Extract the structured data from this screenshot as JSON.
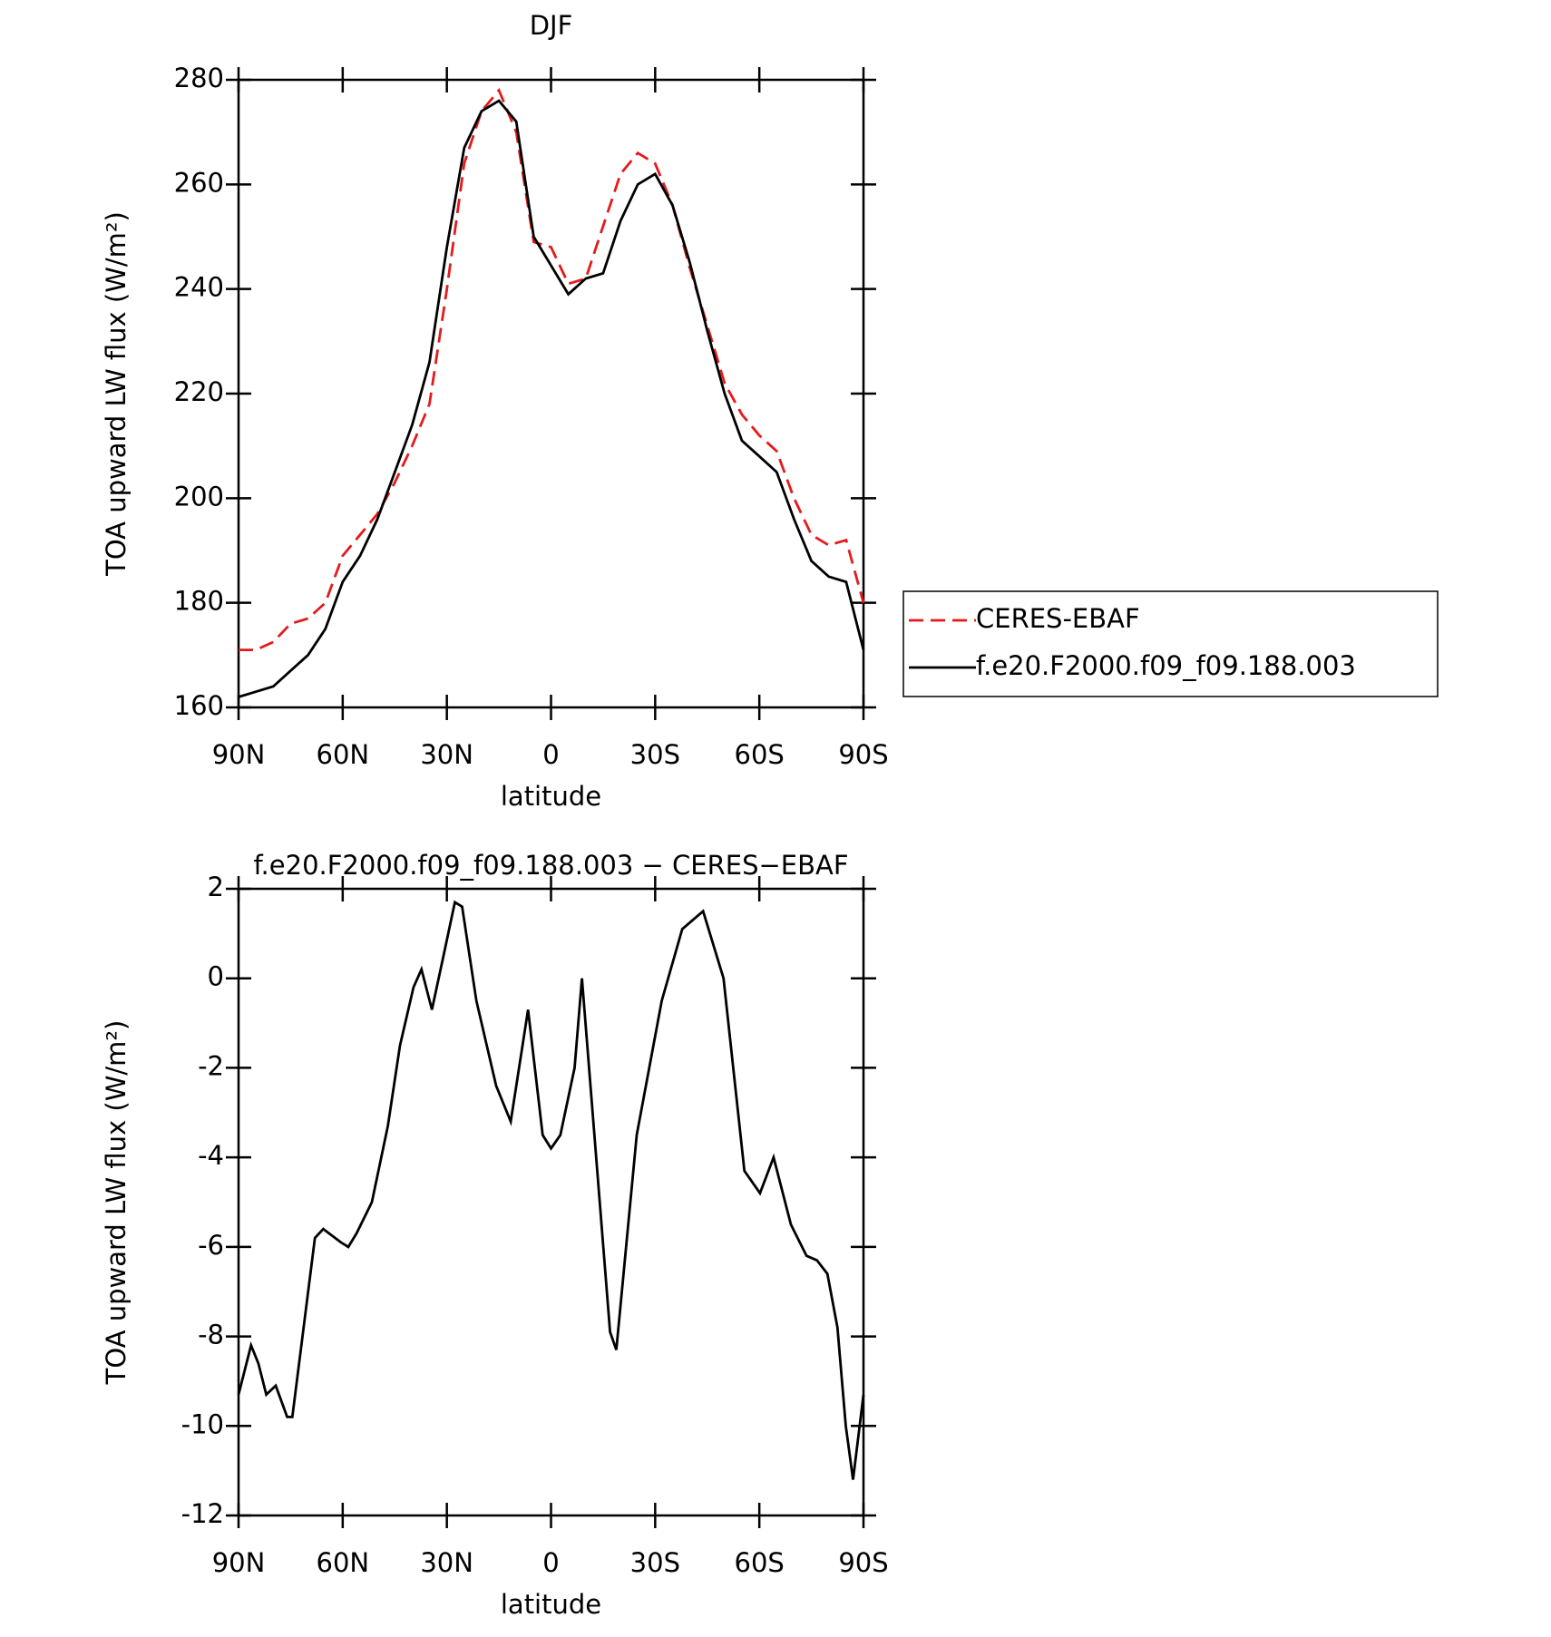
{
  "chart_data": [
    {
      "type": "line",
      "title": "DJF",
      "x_label": "latitude",
      "y_label": "TOA upward LW flux (W/m²)",
      "x": [
        90,
        85,
        80,
        75,
        70,
        65,
        60,
        55,
        50,
        45,
        40,
        35,
        30,
        25,
        20,
        15,
        10,
        5,
        0,
        -5,
        -10,
        -15,
        -20,
        -25,
        -30,
        -35,
        -40,
        -45,
        -50,
        -55,
        -60,
        -65,
        -70,
        -75,
        -80,
        -85,
        -90
      ],
      "xlim": [
        90,
        -90
      ],
      "xticks": [
        {
          "value": 90,
          "label": "90N"
        },
        {
          "value": 60,
          "label": "60N"
        },
        {
          "value": 30,
          "label": "30N"
        },
        0,
        {
          "value": -30,
          "label": "30S"
        },
        {
          "value": -60,
          "label": "60S"
        },
        {
          "value": -90,
          "label": "90S"
        }
      ],
      "ylim": [
        160,
        280
      ],
      "yticks": [
        160,
        180,
        200,
        220,
        240,
        260,
        280
      ],
      "legend": "outside-right",
      "series": [
        {
          "name": "CERES-EBAF",
          "color": "#e41a1c",
          "dashed": true,
          "values": [
            171,
            171,
            172.5,
            176,
            177,
            180,
            189,
            193,
            197,
            203,
            210,
            218,
            240,
            264,
            274,
            278,
            270,
            249,
            248,
            241,
            242,
            252,
            262,
            266,
            264,
            256,
            244,
            233,
            222,
            216,
            212,
            209,
            200,
            193,
            191,
            192,
            180
          ]
        },
        {
          "name": "f.e20.F2000.f09_f09.188.003",
          "color": "#000000",
          "dashed": false,
          "values": [
            162,
            163,
            164,
            167,
            170,
            175,
            184,
            189,
            196,
            205,
            214,
            226,
            248,
            267,
            274,
            276,
            272,
            250,
            244.5,
            239,
            242,
            243,
            253,
            260,
            262,
            256,
            245,
            232,
            220,
            211,
            208,
            205,
            196,
            188,
            185,
            184,
            171
          ]
        }
      ]
    },
    {
      "type": "line",
      "title": "f.e20.F2000.f09_f09.188.003 − CERES−EBAF",
      "x_label": "latitude",
      "y_label": "TOA upward LW flux (W/m²)",
      "x": [
        90,
        86.4,
        84.3,
        82,
        79.3,
        76,
        74.5,
        68,
        65.6,
        60.5,
        58.4,
        56,
        51.6,
        47,
        43.5,
        39.6,
        37.3,
        34.3,
        30.7,
        27.7,
        25.6,
        21.5,
        15.8,
        11.6,
        6.6,
        2.4,
        0,
        -2.7,
        -6.8,
        -8.9,
        -17,
        -18.8,
        -24.7,
        -31.9,
        -37.8,
        -43.8,
        -49.7,
        -55.7,
        -60.2,
        -64.1,
        -69.1,
        -73.6,
        -76.6,
        -79.6,
        -82.5,
        -84.9,
        -87,
        -90
      ],
      "xlim": [
        90,
        -90
      ],
      "xticks": [
        {
          "value": 90,
          "label": "90N"
        },
        {
          "value": 60,
          "label": "60N"
        },
        {
          "value": 30,
          "label": "30N"
        },
        0,
        {
          "value": -30,
          "label": "30S"
        },
        {
          "value": -60,
          "label": "60S"
        },
        {
          "value": -90,
          "label": "90S"
        }
      ],
      "ylim": [
        -12,
        2
      ],
      "yticks": [
        -12,
        -10,
        -8,
        -6,
        -4,
        -2,
        0,
        2
      ],
      "color": "#000000",
      "values": [
        -9.3,
        -8.2,
        -8.6,
        -9.3,
        -9.1,
        -9.8,
        -9.8,
        -5.8,
        -5.6,
        -5.9,
        -6.0,
        -5.7,
        -5.0,
        -3.3,
        -1.5,
        -0.2,
        0.2,
        -0.7,
        0.6,
        1.7,
        1.6,
        -0.5,
        -2.4,
        -3.2,
        -0.7,
        -3.5,
        -3.8,
        -3.5,
        -2.0,
        0.0,
        -7.9,
        -8.3,
        -3.5,
        -0.5,
        1.1,
        1.5,
        0.0,
        -4.3,
        -4.8,
        -4.0,
        -5.5,
        -6.2,
        -6.3,
        -6.6,
        -7.8,
        -10.0,
        -11.2,
        -9.3
      ]
    }
  ]
}
